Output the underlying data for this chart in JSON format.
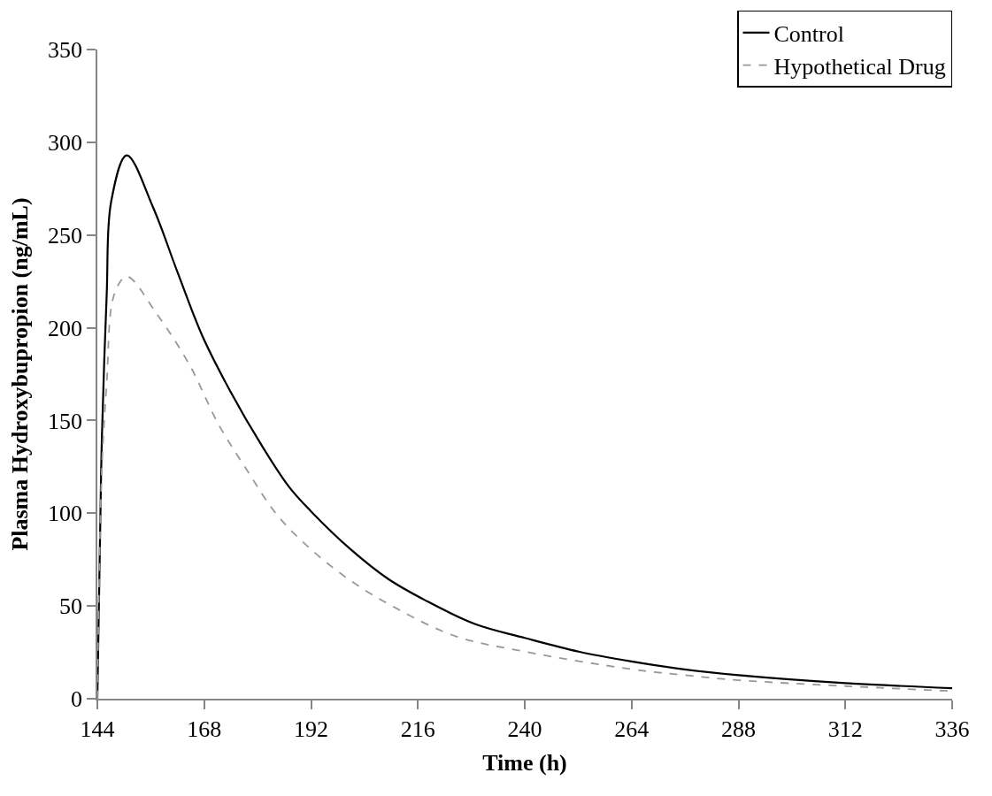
{
  "chart_data": {
    "type": "line",
    "xlabel": "Time (h)",
    "ylabel": "Plasma Hydroxybupropion (ng/mL)",
    "xlim": [
      144,
      336
    ],
    "xticks": [
      144,
      168,
      192,
      216,
      240,
      264,
      288,
      312,
      336
    ],
    "ylim": [
      0,
      350
    ],
    "yticks": [
      0,
      50,
      100,
      150,
      200,
      250,
      300,
      350
    ],
    "legend": "top right",
    "marker": "none",
    "series": [
      {
        "name": "Control",
        "color": "#000000",
        "line_style": "solid",
        "x": [
          144,
          144.7,
          145,
          146.1,
          147.1,
          150.6,
          156.5,
          162,
          167.6,
          173.9,
          180.8,
          187,
          192,
          200.9,
          209.3,
          217.7,
          228.8,
          240,
          252.1,
          264,
          275.9,
          288,
          312,
          336
        ],
        "values": [
          0,
          100,
          139,
          218,
          268,
          293,
          265,
          230,
          195.5,
          165.6,
          137,
          114.4,
          101,
          80.5,
          64.6,
          53,
          40.3,
          32.8,
          25.4,
          20.1,
          15.8,
          12.7,
          8.4,
          5.7
        ]
      },
      {
        "name": "Hypothetical Drug",
        "color": "#999999",
        "line_style": "dashed",
        "x": [
          144,
          145,
          146.1,
          147.8,
          150.6,
          157.2,
          164.7,
          171.2,
          177.7,
          184.2,
          192,
          200.9,
          211.2,
          224.2,
          240,
          264,
          275.9,
          288,
          312,
          336
        ],
        "values": [
          0,
          123,
          170,
          218,
          227.6,
          208,
          180,
          148,
          122.9,
          99.6,
          80.5,
          63.6,
          48.7,
          33.9,
          25.4,
          15.9,
          12.7,
          10,
          6.8,
          4.1
        ]
      }
    ]
  }
}
